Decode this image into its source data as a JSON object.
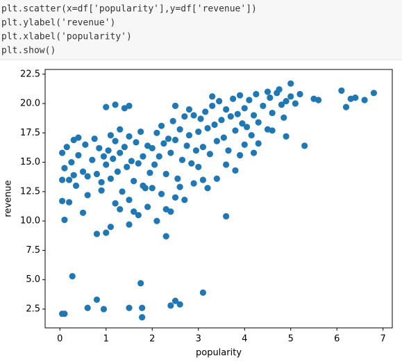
{
  "code": [
    "plt.scatter(x=df['popularity'],y=df['revenue'])",
    "plt.ylabel('revenue')",
    "plt.xlabel('popularity')",
    "plt.show()"
  ],
  "chart_data": {
    "type": "scatter",
    "color": "#1f77b4",
    "xlabel": "popularity",
    "ylabel": "revenue",
    "xlim": [
      -0.32,
      7.2
    ],
    "ylim": [
      0.9,
      22.9
    ],
    "xticks": [
      0,
      1,
      2,
      3,
      4,
      5,
      6,
      7
    ],
    "yticks": [
      2.5,
      {
        "value": 5,
        "label": "5.0"
      },
      7.5,
      {
        "value": 10,
        "label": "10.0"
      },
      12.5,
      {
        "value": 15,
        "label": "15.0"
      },
      17.5,
      {
        "value": 20,
        "label": "20.0"
      },
      22.5
    ],
    "x": [
      0.05,
      0.1,
      0.27,
      0.6,
      0.8,
      0.95,
      1.5,
      1.75,
      1.78,
      1.78,
      2.4,
      2.5,
      2.6,
      3.1,
      6.1,
      6.2,
      6.3,
      6.4,
      6.6,
      6.8,
      5.3,
      5.5,
      5.6,
      5.0,
      4.9,
      1.0,
      0.8,
      2.3,
      1.5,
      3.6,
      0.2,
      0.05,
      0.1,
      0.5,
      1.1,
      0.05,
      0.1,
      0.15,
      0.2,
      0.25,
      0.3,
      0.35,
      0.4,
      0.5,
      0.55,
      0.6,
      0.7,
      0.75,
      0.8,
      0.85,
      0.9,
      0.95,
      1.0,
      1.1,
      1.2,
      1.3,
      1.4,
      1.5,
      0.4,
      0.6,
      0.9,
      0.05,
      0.3,
      1.0,
      1.05,
      1.1,
      1.15,
      1.2,
      1.25,
      1.3,
      1.35,
      1.4,
      1.45,
      1.5,
      1.55,
      1.6,
      1.65,
      1.7,
      1.75,
      1.8,
      1.85,
      1.9,
      1.95,
      1.2,
      1.5,
      1.7,
      1.9,
      1.6,
      1.3,
      1.8,
      2.0,
      2.05,
      2.1,
      2.15,
      2.2,
      2.25,
      2.3,
      2.35,
      2.4,
      2.45,
      2.5,
      2.55,
      2.6,
      2.65,
      2.7,
      2.75,
      2.8,
      2.85,
      2.9,
      2.95,
      2.2,
      2.3,
      2.5,
      2.4,
      2.7,
      2.6,
      2.1,
      2.0,
      2.8,
      2.5,
      2.9,
      3.0,
      3.05,
      3.1,
      3.15,
      3.2,
      3.25,
      3.3,
      3.35,
      3.4,
      3.45,
      3.5,
      3.55,
      3.6,
      3.65,
      3.7,
      3.75,
      3.8,
      3.85,
      3.9,
      3.95,
      3.1,
      3.2,
      3.4,
      3.6,
      3.8,
      3.3,
      3.9,
      3.0,
      4.0,
      4.05,
      4.1,
      4.15,
      4.2,
      4.25,
      4.3,
      4.4,
      4.5,
      4.55,
      4.6,
      4.7,
      4.8,
      4.9,
      4.85,
      4.6,
      4.3,
      4.5,
      4.2,
      4.0,
      5.0,
      5.1,
      5.2,
      4.75
    ],
    "y": [
      2.1,
      2.1,
      5.3,
      2.6,
      3.3,
      2.5,
      2.6,
      4.7,
      2.6,
      1.8,
      2.8,
      3.2,
      2.9,
      3.9,
      21.1,
      19.7,
      20.4,
      20.5,
      20.3,
      20.9,
      16.4,
      20.4,
      20.3,
      21.7,
      17.2,
      9.0,
      8.9,
      8.7,
      9.7,
      10.4,
      11.6,
      11.7,
      10.1,
      10.7,
      9.5,
      15.8,
      14.5,
      16.3,
      13.5,
      15.0,
      16.9,
      13.0,
      15.6,
      14.2,
      16.5,
      13.8,
      15.2,
      17.0,
      14.0,
      16.2,
      13.3,
      15.5,
      19.7,
      17.3,
      19.9,
      17.8,
      19.6,
      19.8,
      17.1,
      12.2,
      12.6,
      13.5,
      13.9,
      14.8,
      16.0,
      13.6,
      15.3,
      16.8,
      14.2,
      15.8,
      12.5,
      16.3,
      14.6,
      17.2,
      15.1,
      13.4,
      16.7,
      14.9,
      17.6,
      15.5,
      12.8,
      16.4,
      14.1,
      11.5,
      11.8,
      10.5,
      11.2,
      10.8,
      11.0,
      13.0,
      16.2,
      14.8,
      17.5,
      15.5,
      18.1,
      16.6,
      14.0,
      17.0,
      15.8,
      18.5,
      16.9,
      13.6,
      17.8,
      15.2,
      18.9,
      16.4,
      17.3,
      14.9,
      19.0,
      16.0,
      12.3,
      11.0,
      12.0,
      10.8,
      11.8,
      12.9,
      10.0,
      12.8,
      19.5,
      19.8,
      13.2,
      17.6,
      18.7,
      16.3,
      19.3,
      17.9,
      15.7,
      19.8,
      18.2,
      16.8,
      20.2,
      18.6,
      17.1,
      19.5,
      16.0,
      18.9,
      20.4,
      17.7,
      19.1,
      15.6,
      18.3,
      13.5,
      12.8,
      13.6,
      14.8,
      14.3,
      20.6,
      20.7,
      14.6,
      19.6,
      18.0,
      20.3,
      17.3,
      19.0,
      20.8,
      18.4,
      19.8,
      17.8,
      20.5,
      19.2,
      20.9,
      19.9,
      20.2,
      18.8,
      17.7,
      16.6,
      21.0,
      15.8,
      16.5,
      20.6,
      20.0,
      20.8,
      21.2
    ]
  }
}
